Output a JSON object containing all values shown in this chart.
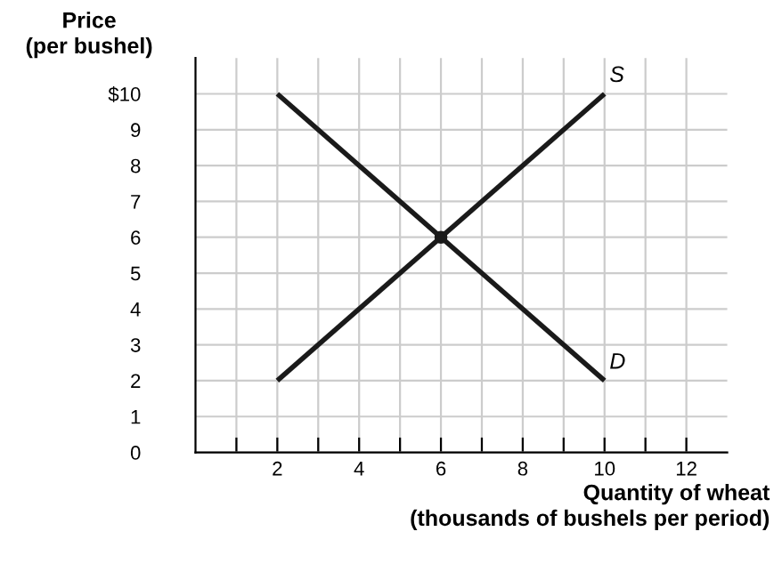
{
  "chart_data": {
    "type": "line",
    "ylabel": "Price\n(per bushel)",
    "xlabel": "Quantity of wheat\n(thousands of bushels per period)",
    "series": [
      {
        "name": "S",
        "color": "#1a1a1a",
        "x": [
          2,
          10
        ],
        "values": [
          2,
          10
        ]
      },
      {
        "name": "D",
        "color": "#1a1a1a",
        "x": [
          2,
          10
        ],
        "values": [
          10,
          2
        ]
      },
      {
        "type": "scatter",
        "marker": "circle",
        "color": "#1a1a1a",
        "x": [
          6
        ],
        "values": [
          6
        ]
      }
    ],
    "xlim": [
      0,
      13
    ],
    "ylim": [
      0,
      11
    ],
    "xticks": [
      {
        "value": 1,
        "label": null
      },
      2,
      {
        "value": 3,
        "label": null
      },
      4,
      {
        "value": 5,
        "label": null
      },
      6,
      {
        "value": 7,
        "label": null
      },
      8,
      {
        "value": 9,
        "label": null
      },
      10,
      {
        "value": 11,
        "label": null
      },
      12
    ],
    "yticks": [
      0,
      1,
      2,
      3,
      4,
      5,
      6,
      7,
      8,
      9,
      {
        "value": 10,
        "label": "$10"
      }
    ],
    "grid": true,
    "line_style": "solid",
    "legend": false
  }
}
